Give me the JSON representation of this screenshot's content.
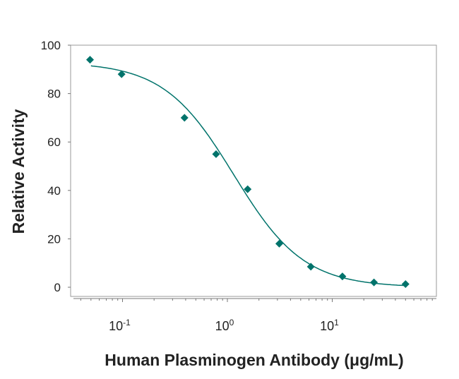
{
  "chart_data": {
    "type": "scatter",
    "title": "",
    "xlabel": "Human Plasminogen Antibody (μg/mL)",
    "ylabel": "Relative Activity",
    "xscale": "log",
    "xlim": [
      0.034,
      100
    ],
    "ylim": [
      0,
      100
    ],
    "grid": false,
    "legend": "none",
    "x_ticks": [
      {
        "base": "10",
        "exp": "-1",
        "value": 0.1
      },
      {
        "base": "10",
        "exp": "0",
        "value": 1
      },
      {
        "base": "10",
        "exp": "1",
        "value": 10
      }
    ],
    "y_ticks": [
      "0",
      "20",
      "40",
      "60",
      "80",
      "100"
    ],
    "series": [
      {
        "x": [
          0.049,
          0.098,
          0.39,
          0.78,
          1.56,
          3.125,
          6.25,
          12.5,
          25,
          50
        ],
        "y": [
          94,
          88,
          70,
          55,
          40.5,
          18,
          8.5,
          4.5,
          2,
          1.3
        ],
        "marker": "diamond",
        "color": "#00736b"
      }
    ],
    "fit_curve": {
      "model": "4PL",
      "top": 93,
      "bottom": 0,
      "ec50": 1.15,
      "hill": 1.3,
      "color": "#00736b"
    }
  }
}
